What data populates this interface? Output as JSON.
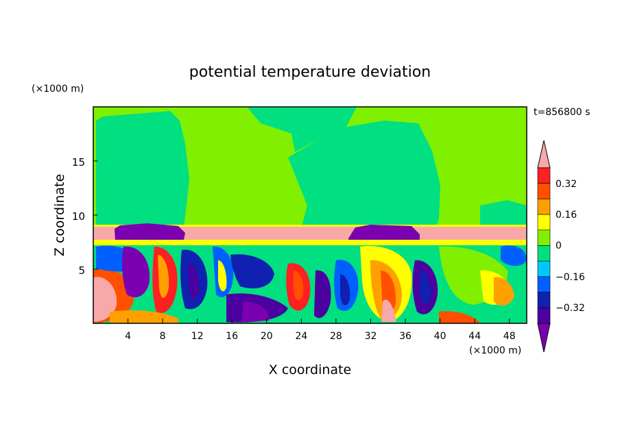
{
  "chart_data": {
    "type": "heatmap",
    "title": "potential temperature deviation",
    "xlabel": "X coordinate",
    "ylabel": "Z coordinate",
    "x_unit": "(×1000 m)",
    "y_unit": "(×1000 m)",
    "time_label": "t=856800 s",
    "xlim": [
      0,
      50
    ],
    "ylim": [
      0,
      20
    ],
    "x_ticks": [
      4,
      8,
      12,
      16,
      20,
      24,
      28,
      32,
      36,
      40,
      44,
      48
    ],
    "x_tick_labels": [
      "4",
      "8",
      "12",
      "16",
      "20",
      "24",
      "28",
      "32",
      "36",
      "40",
      "44",
      "48"
    ],
    "y_ticks": [
      5,
      10,
      15
    ],
    "y_tick_labels": [
      "5",
      "10",
      "15"
    ],
    "colorbar": {
      "levels": [
        -0.4,
        -0.32,
        -0.24,
        -0.16,
        -0.08,
        0,
        0.08,
        0.16,
        0.24,
        0.32,
        0.4
      ],
      "tick_values": [
        -0.32,
        -0.16,
        0,
        0.16,
        0.32
      ],
      "tick_labels": [
        "−0.32",
        "−0.16",
        "0",
        "0.16",
        "0.32"
      ],
      "colors": [
        "#7b00b0",
        "#4b00a0",
        "#1020b0",
        "#0060ff",
        "#00c8ff",
        "#00e080",
        "#80f000",
        "#ffff00",
        "#ffa000",
        "#ff5000",
        "#ff2020",
        "#f8a8a8"
      ],
      "extend": "both"
    },
    "field_summary": {
      "upper_layer_z_range": [
        9.2,
        20
      ],
      "upper_layer_value": 0.04,
      "upper_plumes_value": -0.02,
      "inversion_layer_z_range": [
        8.0,
        9.2
      ],
      "inversion_layer_value": 0.45,
      "cold_patches_on_inversion": [
        {
          "x_range": [
            2.5,
            10.5
          ],
          "value": -0.45
        },
        {
          "x_range": [
            29.5,
            37.5
          ],
          "value": -0.45
        }
      ],
      "turbulent_layer_z_range": [
        0,
        8.0
      ],
      "turbulent_value_range": [
        -0.45,
        0.45
      ]
    }
  }
}
